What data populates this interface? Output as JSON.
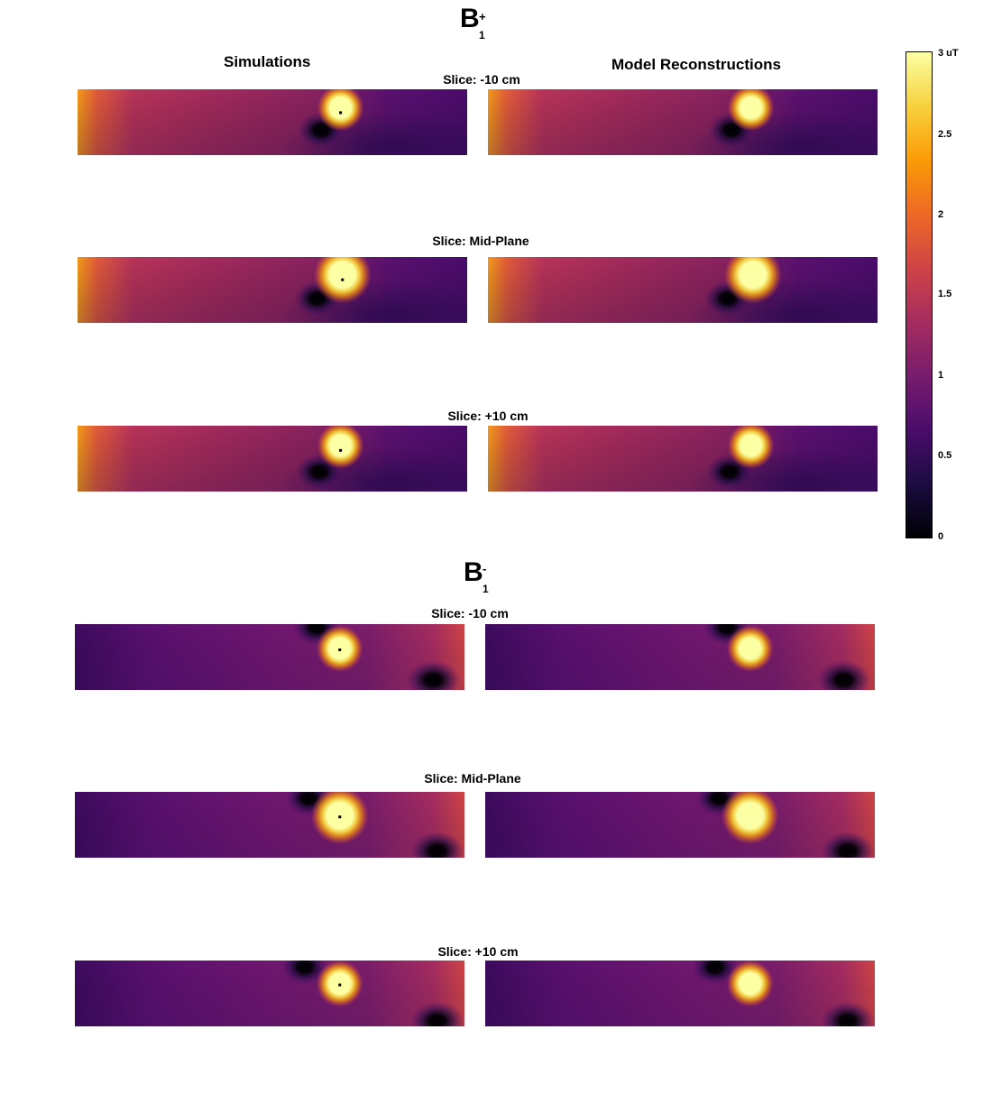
{
  "chart_data": {
    "type": "heatmap",
    "column_titles": [
      "Simulations",
      "Model Reconstructions"
    ],
    "colorbar": {
      "colormap": "inferno",
      "range": [
        0,
        3
      ],
      "ticks": [
        {
          "value": 3,
          "label": "3 uT"
        },
        {
          "value": 2.5,
          "label": "2.5"
        },
        {
          "value": 2,
          "label": "2"
        },
        {
          "value": 1.5,
          "label": "1.5"
        },
        {
          "value": 1,
          "label": "1"
        },
        {
          "value": 0.5,
          "label": "0.5"
        },
        {
          "value": 0,
          "label": "0"
        }
      ]
    },
    "sections": [
      {
        "title_base": "B",
        "title_sup": "+",
        "title_sub": "1",
        "slices": [
          {
            "label": "Slice: -10 cm",
            "source_x": 0.675,
            "source_y": 0.28,
            "null_x": 0.625,
            "null_y": 0.62,
            "edge": "left"
          },
          {
            "label": "Slice: Mid-Plane",
            "source_x": 0.68,
            "source_y": 0.27,
            "null_x": 0.615,
            "null_y": 0.63,
            "edge": "left"
          },
          {
            "label": "Slice: +10 cm",
            "source_x": 0.675,
            "source_y": 0.3,
            "null_x": 0.62,
            "null_y": 0.7,
            "edge": "left"
          }
        ]
      },
      {
        "title_base": "B",
        "title_sup": "-",
        "title_sub": "1",
        "slices": [
          {
            "label": "Slice: -10 cm",
            "source_x": 0.68,
            "source_y": 0.37,
            "null_x": 0.62,
            "null_y": 0.05,
            "null2_x": 0.92,
            "null2_y": 0.85,
            "edge": "right"
          },
          {
            "label": "Slice: Mid-Plane",
            "source_x": 0.68,
            "source_y": 0.36,
            "null_x": 0.6,
            "null_y": 0.1,
            "null2_x": 0.93,
            "null2_y": 0.9,
            "edge": "right"
          },
          {
            "label": "Slice: +10 cm",
            "source_x": 0.68,
            "source_y": 0.35,
            "null_x": 0.59,
            "null_y": 0.1,
            "null2_x": 0.93,
            "null2_y": 0.92,
            "edge": "right"
          }
        ]
      }
    ]
  }
}
